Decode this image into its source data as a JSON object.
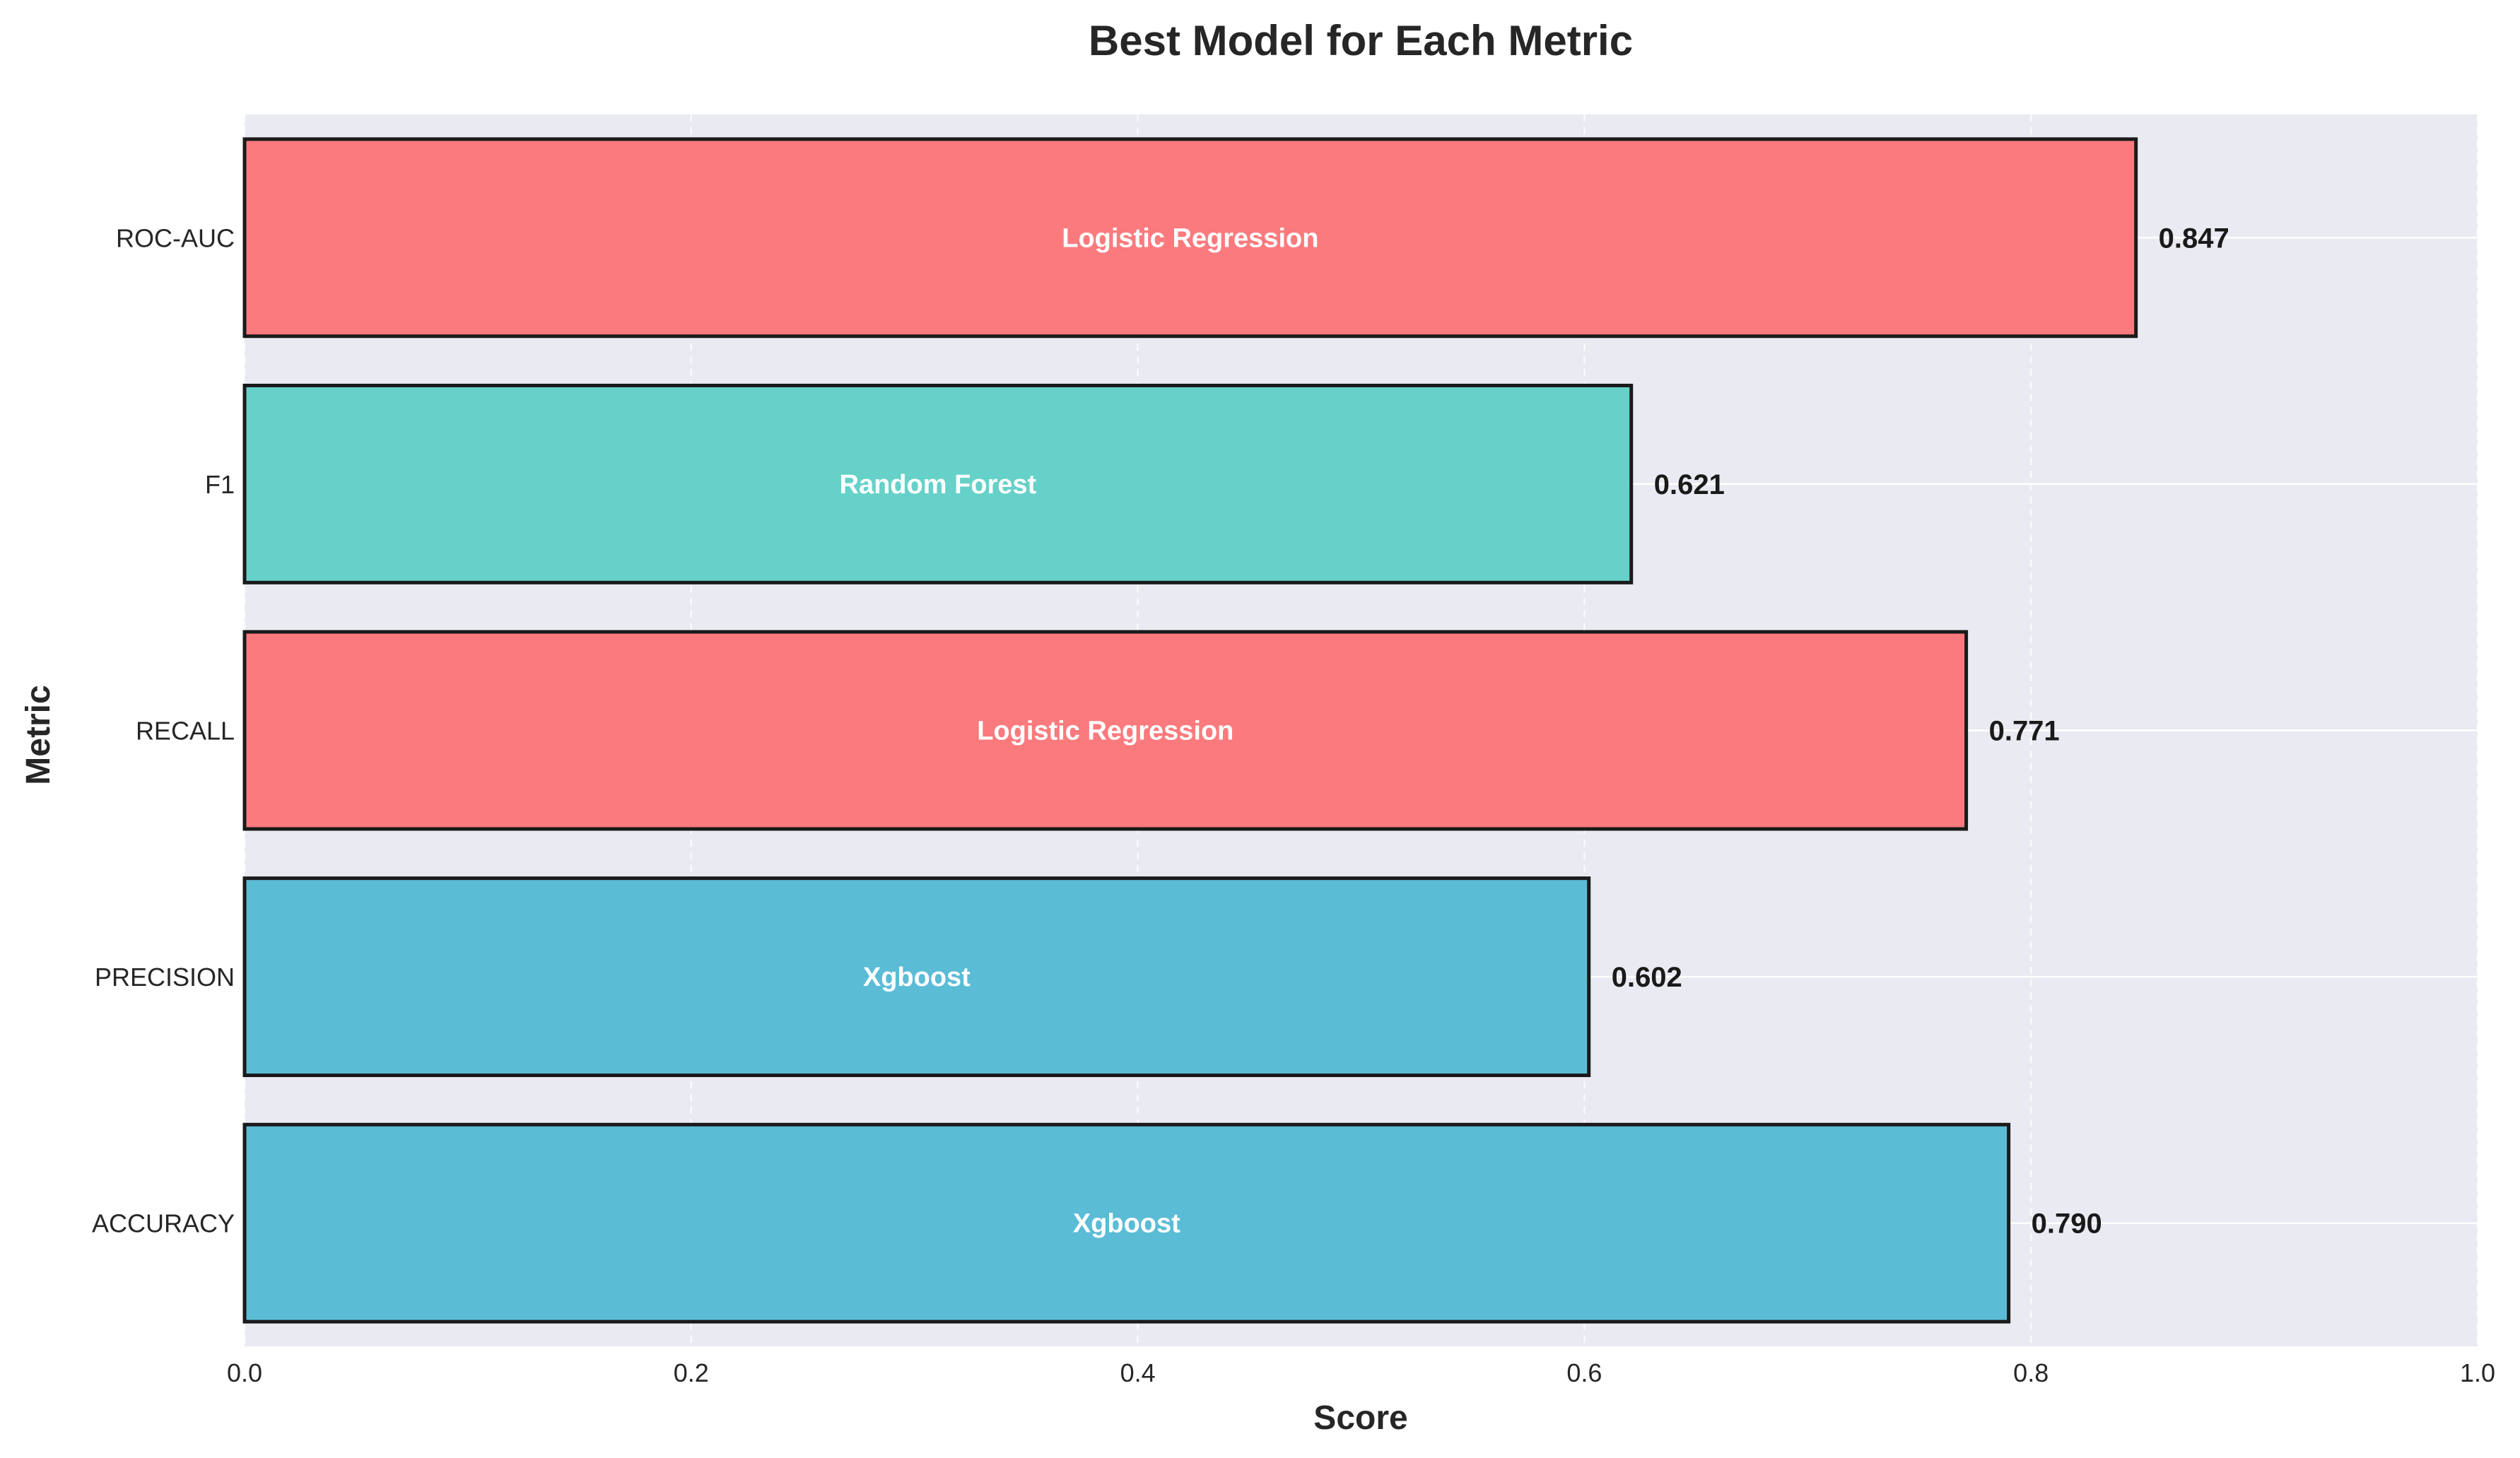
{
  "chart_data": {
    "type": "bar",
    "orientation": "horizontal",
    "title": "Best Model for Each Metric",
    "xlabel": "Score",
    "ylabel": "Metric",
    "xlim": [
      0,
      1.0
    ],
    "x_ticks": [
      "0.0",
      "0.2",
      "0.4",
      "0.6",
      "0.8",
      "1.0"
    ],
    "x_tick_values": [
      0,
      0.2,
      0.4,
      0.6,
      0.8,
      1.0
    ],
    "grid": true,
    "background": "#eaeaf2",
    "categories": [
      "ACCURACY",
      "PRECISION",
      "RECALL",
      "F1",
      "ROC-AUC"
    ],
    "values": [
      0.79,
      0.602,
      0.771,
      0.621,
      0.847
    ],
    "value_labels": [
      "0.790",
      "0.602",
      "0.771",
      "0.621",
      "0.847"
    ],
    "models": [
      "Xgboost",
      "Xgboost",
      "Logistic Regression",
      "Random Forest",
      "Logistic Regression"
    ],
    "colors": [
      "#5bbcd6",
      "#5bbcd6",
      "#fb7a7d",
      "#66d1c8",
      "#fb7a7d"
    ],
    "edge_color": "#1a1a1a"
  }
}
